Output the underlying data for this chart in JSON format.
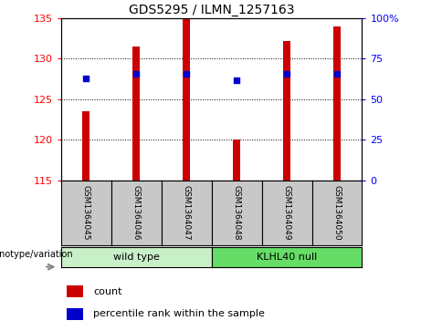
{
  "title": "GDS5295 / ILMN_1257163",
  "samples": [
    "GSM1364045",
    "GSM1364046",
    "GSM1364047",
    "GSM1364048",
    "GSM1364049",
    "GSM1364050"
  ],
  "counts": [
    123.5,
    131.5,
    135.0,
    120.0,
    132.2,
    134.0
  ],
  "percentile_ranks": [
    63.0,
    65.5,
    65.5,
    62.0,
    65.5,
    65.5
  ],
  "group_configs": [
    {
      "indices": [
        0,
        1,
        2
      ],
      "label": "wild type",
      "color": "#c8f0c8"
    },
    {
      "indices": [
        3,
        4,
        5
      ],
      "label": "KLHL40 null",
      "color": "#66dd66"
    }
  ],
  "ylim_left": [
    115,
    135
  ],
  "ylim_right": [
    0,
    100
  ],
  "yticks_left": [
    115,
    120,
    125,
    130,
    135
  ],
  "yticks_right": [
    0,
    25,
    50,
    75,
    100
  ],
  "bar_color": "#cc0000",
  "dot_color": "#0000cc",
  "bar_bottom": 115,
  "bar_width": 0.15,
  "box_facecolor": "#c8c8c8",
  "group_label": "genotype/variation",
  "legend_count_label": "count",
  "legend_pct_label": "percentile rank within the sample"
}
